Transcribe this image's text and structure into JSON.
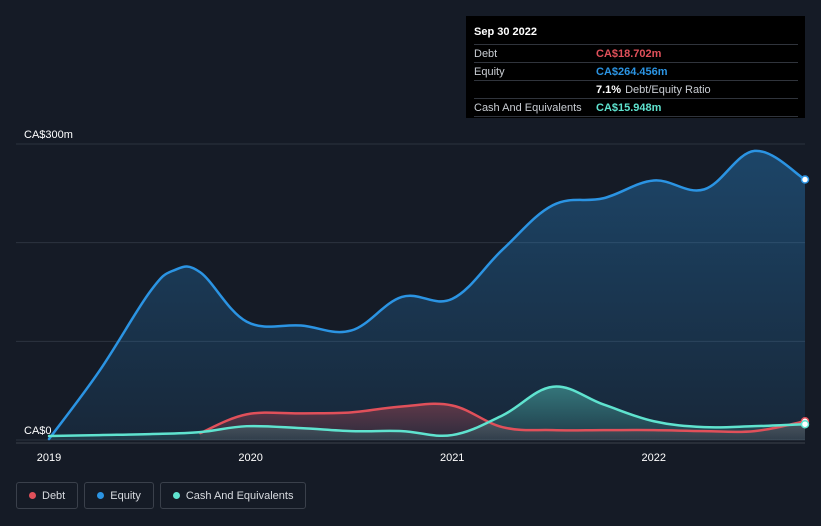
{
  "tooltip": {
    "date": "Sep 30 2022",
    "debt_label": "Debt",
    "debt_value": "CA$18.702m",
    "equity_label": "Equity",
    "equity_value": "CA$264.456m",
    "ratio_value": "7.1%",
    "ratio_label": "Debt/Equity Ratio",
    "cash_label": "Cash And Equivalents",
    "cash_value": "CA$15.948m"
  },
  "legend": [
    {
      "label": "Debt",
      "color": "#e0505a"
    },
    {
      "label": "Equity",
      "color": "#2b94e3"
    },
    {
      "label": "Cash And Equivalents",
      "color": "#5fe3cf"
    }
  ],
  "colors": {
    "background": "#151b26",
    "debt": "#e0505a",
    "equity": "#2b94e3",
    "cash": "#5fe3cf",
    "grid": "#2c333f"
  },
  "chart_data": {
    "type": "area",
    "ylim": [
      0,
      300
    ],
    "xlim": [
      2019.0,
      2022.75
    ],
    "y_tick_labels": [
      {
        "value": 300,
        "label": "CA$300m"
      },
      {
        "value": 0,
        "label": "CA$0"
      }
    ],
    "x_ticks": [
      2019,
      2020,
      2021,
      2022
    ],
    "x_tick_labels": [
      "2019",
      "2020",
      "2021",
      "2022"
    ],
    "grid": true,
    "series": [
      {
        "name": "Equity",
        "x": [
          2019.0,
          2019.25,
          2019.5,
          2019.62,
          2019.75,
          2019.98,
          2020.25,
          2020.5,
          2020.75,
          2021.0,
          2021.25,
          2021.5,
          2021.75,
          2022.0,
          2022.25,
          2022.5,
          2022.75
        ],
        "values": [
          1,
          70,
          150,
          172,
          170,
          120,
          116,
          111,
          145,
          143,
          193,
          238,
          245,
          263,
          254,
          293,
          264
        ]
      },
      {
        "name": "Debt",
        "x": [
          2019.75,
          2019.98,
          2020.25,
          2020.5,
          2020.75,
          2021.0,
          2021.25,
          2021.5,
          2021.75,
          2022.0,
          2022.25,
          2022.5,
          2022.75
        ],
        "values": [
          7,
          26,
          27,
          28,
          34,
          35,
          13,
          10,
          10,
          10,
          9,
          9,
          19
        ]
      },
      {
        "name": "Cash And Equivalents",
        "x": [
          2019.0,
          2019.25,
          2019.5,
          2019.75,
          2019.98,
          2020.25,
          2020.5,
          2020.75,
          2021.0,
          2021.25,
          2021.5,
          2021.75,
          2022.0,
          2022.25,
          2022.5,
          2022.75
        ],
        "values": [
          4,
          5,
          6,
          8,
          14,
          12,
          9,
          9,
          5,
          25,
          54,
          36,
          19,
          13,
          14,
          16
        ]
      }
    ]
  }
}
